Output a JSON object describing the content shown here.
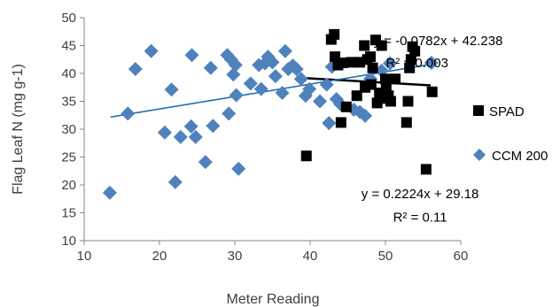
{
  "chart_data": {
    "type": "scatter",
    "xlabel": "Meter Reading",
    "ylabel": "Flag Leaf N (mg g-1)",
    "xlim": [
      10,
      60
    ],
    "ylim": [
      10,
      50
    ],
    "xticks": [
      10,
      20,
      30,
      40,
      50,
      60
    ],
    "yticks": [
      10,
      15,
      20,
      25,
      30,
      35,
      40,
      45,
      50
    ],
    "grid": false,
    "legend_position": "right",
    "series": [
      {
        "name": "SPAD",
        "marker": "square",
        "color": "#000000",
        "trendline": {
          "slope": -0.0782,
          "intercept": 42.238,
          "x_range": [
            39.5,
            56
          ],
          "color": "#000000"
        },
        "points": [
          [
            39.5,
            25.2
          ],
          [
            42.8,
            46.1
          ],
          [
            43.2,
            47.0
          ],
          [
            43.3,
            43.0
          ],
          [
            43.7,
            41.5
          ],
          [
            44.1,
            31.2
          ],
          [
            44.3,
            41.9
          ],
          [
            44.8,
            34.0
          ],
          [
            45.5,
            42.0
          ],
          [
            46.2,
            36.0
          ],
          [
            46.6,
            42.0
          ],
          [
            47.2,
            45.0
          ],
          [
            47.3,
            37.5
          ],
          [
            47.6,
            42.5
          ],
          [
            48.0,
            43.0
          ],
          [
            48.1,
            38.0
          ],
          [
            48.3,
            41.0
          ],
          [
            48.7,
            46.0
          ],
          [
            48.9,
            34.7
          ],
          [
            49.2,
            36.5
          ],
          [
            49.5,
            45.0
          ],
          [
            49.7,
            35.5
          ],
          [
            50.0,
            39.0
          ],
          [
            50.1,
            37.5
          ],
          [
            50.4,
            36.0
          ],
          [
            50.7,
            35.0
          ],
          [
            51.3,
            39.0
          ],
          [
            52.8,
            31.2
          ],
          [
            53.0,
            35.0
          ],
          [
            53.2,
            41.0
          ],
          [
            53.4,
            42.5
          ],
          [
            53.6,
            44.8
          ],
          [
            53.9,
            44.0
          ],
          [
            55.4,
            22.8
          ],
          [
            56.2,
            36.7
          ]
        ]
      },
      {
        "name": "CCM 200",
        "marker": "diamond",
        "color": "#4f81bd",
        "trendline": {
          "slope": 0.2224,
          "intercept": 29.18,
          "x_range": [
            13.5,
            56
          ],
          "color": "#1f6fb4"
        },
        "points": [
          [
            13.4,
            18.6
          ],
          [
            15.8,
            32.8
          ],
          [
            16.8,
            40.8
          ],
          [
            18.9,
            44.0
          ],
          [
            20.7,
            29.4
          ],
          [
            21.6,
            37.1
          ],
          [
            22.1,
            20.5
          ],
          [
            22.8,
            28.6
          ],
          [
            24.2,
            30.5
          ],
          [
            24.3,
            43.3
          ],
          [
            24.8,
            28.6
          ],
          [
            26.1,
            24.1
          ],
          [
            26.8,
            41.0
          ],
          [
            27.1,
            30.6
          ],
          [
            29.0,
            43.3
          ],
          [
            29.2,
            32.8
          ],
          [
            29.5,
            42.5
          ],
          [
            29.8,
            39.8
          ],
          [
            30.1,
            41.5
          ],
          [
            30.2,
            36.1
          ],
          [
            30.5,
            22.9
          ],
          [
            32.1,
            38.2
          ],
          [
            33.2,
            41.5
          ],
          [
            33.5,
            37.2
          ],
          [
            34.0,
            41.8
          ],
          [
            34.4,
            43.0
          ],
          [
            35.0,
            42.0
          ],
          [
            35.4,
            39.5
          ],
          [
            36.3,
            36.5
          ],
          [
            36.7,
            44.0
          ],
          [
            37.1,
            40.8
          ],
          [
            37.7,
            41.4
          ],
          [
            38.2,
            40.8
          ],
          [
            38.8,
            39.0
          ],
          [
            39.4,
            36.0
          ],
          [
            39.9,
            37.2
          ],
          [
            41.3,
            35.0
          ],
          [
            42.2,
            38.0
          ],
          [
            42.5,
            31.1
          ],
          [
            42.9,
            41.2
          ],
          [
            43.5,
            35.4
          ],
          [
            44.0,
            34.5
          ],
          [
            45.8,
            33.5
          ],
          [
            46.6,
            33.1
          ],
          [
            47.3,
            32.4
          ],
          [
            48.0,
            39.0
          ],
          [
            49.5,
            40.5
          ],
          [
            50.6,
            41.8
          ],
          [
            56.1,
            41.9
          ]
        ]
      }
    ],
    "annotations": [
      {
        "text": "y = -0.0782x + 42.238",
        "x": 57,
        "y": 45.1
      },
      {
        "text": "R² = 0.003",
        "x": 54.2,
        "y": 41.1
      },
      {
        "text": "y = 0.2224x + 29.18",
        "x": 54.6,
        "y": 17.6
      },
      {
        "text": "R² = 0.11",
        "x": 54.6,
        "y": 13.4
      }
    ]
  }
}
